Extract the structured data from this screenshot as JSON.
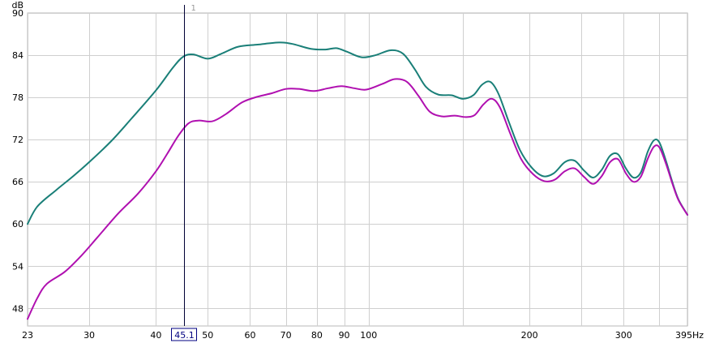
{
  "chart_data": {
    "type": "line",
    "title": "",
    "ylabel": "dB",
    "x_unit": "Hz",
    "x_scale": "log",
    "xlim": [
      23,
      395
    ],
    "ylim": [
      45.5,
      90
    ],
    "grid": true,
    "x_ticks": [
      23,
      30,
      40,
      50,
      60,
      70,
      80,
      90,
      100,
      200,
      300,
      395
    ],
    "x_tick_labels": [
      "23",
      "30",
      "40",
      "50",
      "60",
      "70",
      "80",
      "90",
      "100",
      "200",
      "300",
      "395Hz"
    ],
    "x_minor_ticks": [
      150,
      250,
      350
    ],
    "y_ticks": [
      48,
      54,
      60,
      66,
      72,
      78,
      84,
      90
    ],
    "y_tick_labels": [
      "48",
      "54",
      "60",
      "66",
      "72",
      "78",
      "84",
      "90"
    ],
    "cursor": {
      "x": 45.1,
      "label": "45.1",
      "marker": "1"
    },
    "series": [
      {
        "name": "",
        "color": "#1a7f78",
        "points": [
          [
            23,
            60.0
          ],
          [
            24,
            62.5
          ],
          [
            26,
            64.8
          ],
          [
            28,
            66.8
          ],
          [
            30,
            68.8
          ],
          [
            33,
            71.8
          ],
          [
            36,
            75.0
          ],
          [
            40,
            79.0
          ],
          [
            43,
            82.2
          ],
          [
            45,
            83.8
          ],
          [
            47,
            84.1
          ],
          [
            50,
            83.5
          ],
          [
            53,
            84.2
          ],
          [
            57,
            85.2
          ],
          [
            62,
            85.5
          ],
          [
            68,
            85.8
          ],
          [
            72,
            85.6
          ],
          [
            78,
            84.9
          ],
          [
            83,
            84.8
          ],
          [
            87,
            85.0
          ],
          [
            91,
            84.5
          ],
          [
            97,
            83.7
          ],
          [
            103,
            84.0
          ],
          [
            110,
            84.7
          ],
          [
            116,
            84.2
          ],
          [
            122,
            82.0
          ],
          [
            128,
            79.5
          ],
          [
            135,
            78.4
          ],
          [
            143,
            78.3
          ],
          [
            150,
            77.8
          ],
          [
            157,
            78.3
          ],
          [
            163,
            79.8
          ],
          [
            169,
            80.2
          ],
          [
            175,
            78.5
          ],
          [
            183,
            74.5
          ],
          [
            192,
            70.5
          ],
          [
            202,
            68.0
          ],
          [
            212,
            66.8
          ],
          [
            222,
            67.2
          ],
          [
            233,
            68.8
          ],
          [
            243,
            69.0
          ],
          [
            253,
            67.6
          ],
          [
            263,
            66.6
          ],
          [
            273,
            67.7
          ],
          [
            283,
            69.7
          ],
          [
            293,
            69.9
          ],
          [
            303,
            67.9
          ],
          [
            313,
            66.6
          ],
          [
            323,
            67.3
          ],
          [
            333,
            70.3
          ],
          [
            342,
            71.9
          ],
          [
            350,
            71.6
          ],
          [
            360,
            69.0
          ],
          [
            370,
            66.0
          ],
          [
            380,
            63.5
          ],
          [
            395,
            61.3
          ]
        ]
      },
      {
        "name": "",
        "color": "#b010b0",
        "points": [
          [
            23,
            46.5
          ],
          [
            24,
            49.5
          ],
          [
            25,
            51.5
          ],
          [
            27,
            53.2
          ],
          [
            29,
            55.5
          ],
          [
            31,
            58.0
          ],
          [
            34,
            61.5
          ],
          [
            37,
            64.3
          ],
          [
            40,
            67.5
          ],
          [
            42,
            70.0
          ],
          [
            44,
            72.5
          ],
          [
            46,
            74.3
          ],
          [
            48,
            74.7
          ],
          [
            51,
            74.6
          ],
          [
            54,
            75.6
          ],
          [
            58,
            77.3
          ],
          [
            62,
            78.1
          ],
          [
            66,
            78.6
          ],
          [
            70,
            79.2
          ],
          [
            74,
            79.2
          ],
          [
            79,
            78.9
          ],
          [
            84,
            79.3
          ],
          [
            89,
            79.6
          ],
          [
            94,
            79.3
          ],
          [
            99,
            79.1
          ],
          [
            106,
            79.9
          ],
          [
            112,
            80.6
          ],
          [
            118,
            80.2
          ],
          [
            124,
            78.2
          ],
          [
            130,
            76.0
          ],
          [
            137,
            75.3
          ],
          [
            145,
            75.4
          ],
          [
            152,
            75.2
          ],
          [
            158,
            75.5
          ],
          [
            164,
            77.0
          ],
          [
            170,
            77.8
          ],
          [
            176,
            76.6
          ],
          [
            184,
            72.9
          ],
          [
            193,
            69.2
          ],
          [
            203,
            67.1
          ],
          [
            213,
            66.1
          ],
          [
            223,
            66.3
          ],
          [
            233,
            67.5
          ],
          [
            243,
            67.9
          ],
          [
            253,
            66.7
          ],
          [
            263,
            65.7
          ],
          [
            273,
            66.8
          ],
          [
            283,
            68.8
          ],
          [
            293,
            69.2
          ],
          [
            303,
            67.2
          ],
          [
            313,
            66.0
          ],
          [
            323,
            66.7
          ],
          [
            333,
            69.3
          ],
          [
            342,
            71.0
          ],
          [
            350,
            70.9
          ],
          [
            360,
            68.6
          ],
          [
            370,
            65.8
          ],
          [
            380,
            63.4
          ],
          [
            395,
            61.3
          ]
        ]
      }
    ]
  }
}
